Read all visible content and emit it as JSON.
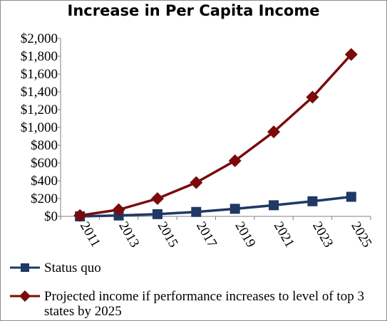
{
  "chart_data": {
    "type": "line",
    "title": "Increase in Per Capita Income",
    "x": [
      "2011",
      "2013",
      "2015",
      "2017",
      "2019",
      "2021",
      "2023",
      "2025"
    ],
    "ylim": [
      0,
      2000
    ],
    "y_ticks": [
      "$0",
      "$200",
      "$400",
      "$600",
      "$800",
      "$1,000",
      "$1,200",
      "$1,400",
      "$1,600",
      "$1,800",
      "$2,000"
    ],
    "y_tick_values": [
      0,
      200,
      400,
      600,
      800,
      1000,
      1200,
      1400,
      1600,
      1800,
      2000
    ],
    "grid": false,
    "legend_position": "bottom",
    "series": [
      {
        "name": "Status quo",
        "values": [
          0,
          10,
          25,
          50,
          85,
          125,
          170,
          220
        ],
        "color": "#1f3864",
        "marker": "square"
      },
      {
        "name": "Projected income if performance increases to level of top 3 states by 2025",
        "values": [
          10,
          75,
          200,
          380,
          625,
          950,
          1340,
          1820
        ],
        "color": "#7b0a0a",
        "marker": "diamond"
      }
    ]
  }
}
